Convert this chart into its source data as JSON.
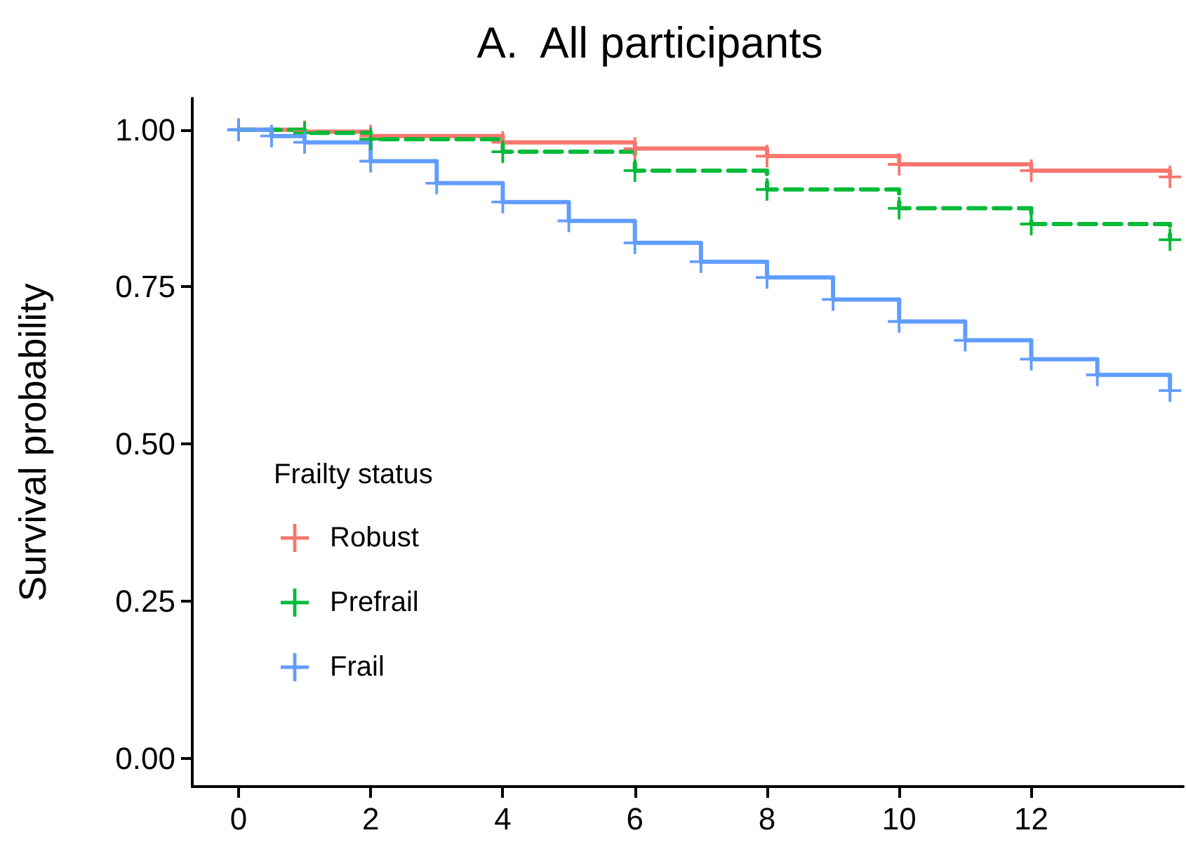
{
  "chart_data": {
    "type": "step",
    "title": "A.  All participants",
    "ylabel": "Survival probability",
    "legend_title": "Frailty status",
    "xlim": [
      -0.7,
      14.3
    ],
    "xticks": [
      0,
      2,
      4,
      6,
      8,
      10,
      12
    ],
    "ylim": [
      -0.045,
      1.05
    ],
    "yticks": [
      {
        "value": 0,
        "label": "0.00"
      },
      {
        "value": 0.25,
        "label": "0.25"
      },
      {
        "value": 0.5,
        "label": "0.50"
      },
      {
        "value": 0.75,
        "label": "0.75"
      },
      {
        "value": 1,
        "label": "1.00"
      }
    ],
    "grid": false,
    "legend": "bottom left",
    "marker": "cross",
    "series": [
      {
        "name": "Robust",
        "color": "#f8766d",
        "line_style": "solid",
        "x": [
          0,
          1,
          2,
          4,
          6,
          8,
          10,
          12,
          14.1
        ],
        "values": [
          1,
          0.997,
          0.99,
          0.98,
          0.97,
          0.958,
          0.945,
          0.935,
          0.925
        ]
      },
      {
        "name": "Prefrail",
        "color": "#00ba38",
        "line_style": "dashed",
        "x": [
          0,
          1,
          2,
          4,
          6,
          8,
          10,
          12,
          14.1
        ],
        "values": [
          1,
          0.995,
          0.985,
          0.965,
          0.935,
          0.905,
          0.875,
          0.85,
          0.825
        ]
      },
      {
        "name": "Frail",
        "color": "#619cff",
        "line_style": "solid",
        "x": [
          0,
          0.5,
          1,
          2,
          3,
          4,
          5,
          6,
          7,
          8,
          9,
          10,
          11,
          12,
          13,
          14.1
        ],
        "values": [
          1,
          0.99,
          0.98,
          0.95,
          0.915,
          0.885,
          0.855,
          0.82,
          0.79,
          0.765,
          0.73,
          0.695,
          0.665,
          0.635,
          0.61,
          0.585
        ]
      }
    ]
  }
}
